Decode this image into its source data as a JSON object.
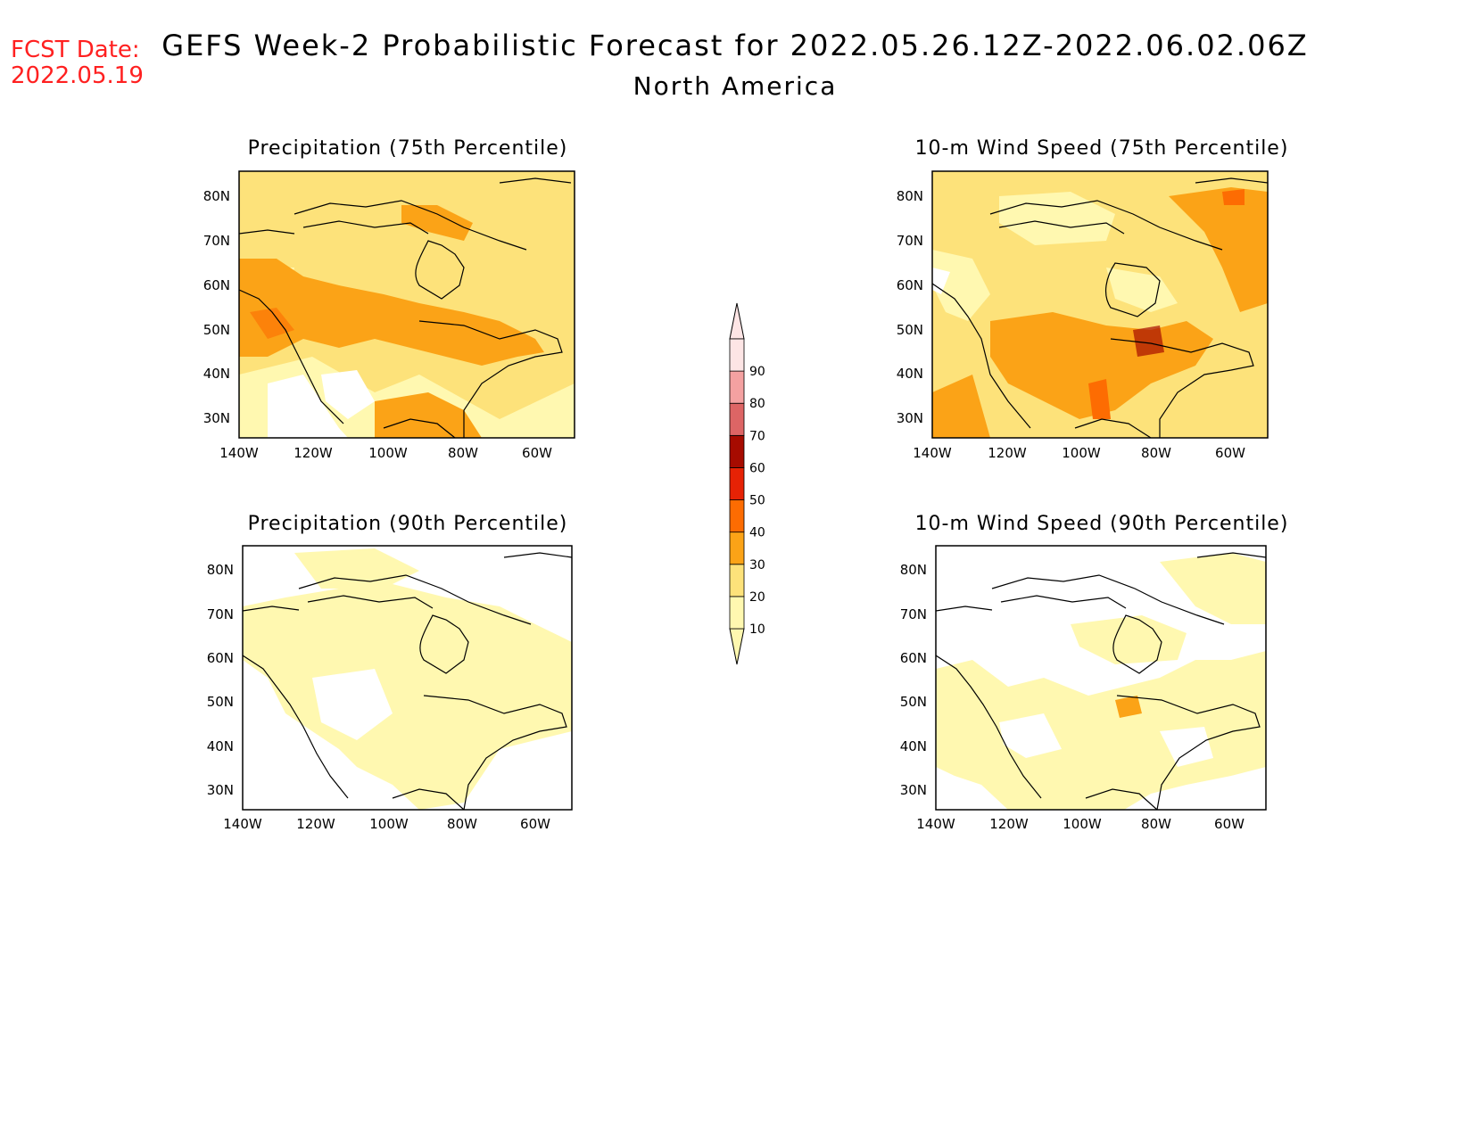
{
  "header": {
    "fcst_label": "FCST Date:",
    "fcst_date": "2022.05.19",
    "title": "GEFS Week-2 Probabilistic Forecast for 2022.05.26.12Z-2022.06.02.06Z",
    "subtitle": "North America",
    "accent_color": "#ff2020"
  },
  "panels": [
    {
      "title": "Precipitation (75th Percentile)",
      "variable": "precipitation",
      "percentile": 75
    },
    {
      "title": "10-m Wind Speed (75th Percentile)",
      "variable": "wind_speed_10m",
      "percentile": 75
    },
    {
      "title": "Precipitation (90th Percentile)",
      "variable": "precipitation",
      "percentile": 90
    },
    {
      "title": "10-m Wind Speed (90th Percentile)",
      "variable": "wind_speed_10m",
      "percentile": 90
    }
  ],
  "axes": {
    "lon_labels": [
      "140W",
      "120W",
      "100W",
      "80W",
      "60W"
    ],
    "lat_labels": [
      "80N",
      "70N",
      "60N",
      "50N",
      "40N",
      "30N"
    ],
    "lon_range": [
      -140,
      -50
    ],
    "lat_range": [
      25,
      85
    ]
  },
  "colorbar": {
    "levels": [
      "10",
      "20",
      "30",
      "40",
      "50",
      "60",
      "70",
      "80",
      "90"
    ],
    "colors": [
      "#fff8b0",
      "#fde27a",
      "#fba317",
      "#fd6c02",
      "#e62205",
      "#a60b00",
      "#dd6565",
      "#f4a1a1",
      "#fde5e5"
    ]
  }
}
